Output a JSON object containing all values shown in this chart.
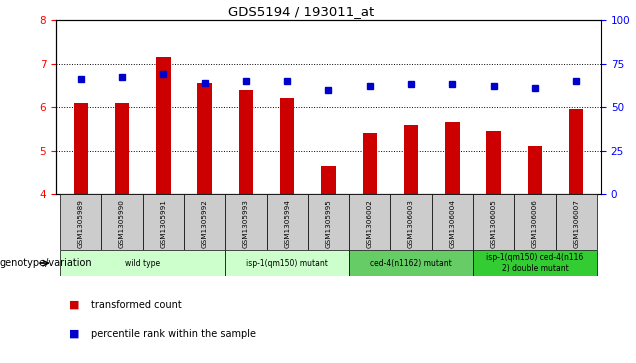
{
  "title": "GDS5194 / 193011_at",
  "samples": [
    "GSM1305989",
    "GSM1305990",
    "GSM1305991",
    "GSM1305992",
    "GSM1305993",
    "GSM1305994",
    "GSM1305995",
    "GSM1306002",
    "GSM1306003",
    "GSM1306004",
    "GSM1306005",
    "GSM1306006",
    "GSM1306007"
  ],
  "transformed_count": [
    6.1,
    6.1,
    7.15,
    6.55,
    6.4,
    6.2,
    4.65,
    5.4,
    5.6,
    5.65,
    5.45,
    5.1,
    5.95
  ],
  "percentile_rank": [
    66,
    67,
    69,
    64,
    65,
    65,
    60,
    62,
    63,
    63,
    62,
    61,
    65
  ],
  "ylim": [
    4,
    8
  ],
  "yticks": [
    4,
    5,
    6,
    7,
    8
  ],
  "right_yticks": [
    0,
    25,
    50,
    75,
    100
  ],
  "right_ylim": [
    0,
    100
  ],
  "bar_color": "#cc0000",
  "dot_color": "#0000cc",
  "tick_bg_color": "#cccccc",
  "bar_width": 0.35,
  "dot_size": 5,
  "group_spans": [
    {
      "start": 0,
      "end": 3,
      "label": "wild type",
      "color": "#ccffcc"
    },
    {
      "start": 4,
      "end": 6,
      "label": "isp-1(qm150) mutant",
      "color": "#ccffcc"
    },
    {
      "start": 7,
      "end": 9,
      "label": "ced-4(n1162) mutant",
      "color": "#66cc66"
    },
    {
      "start": 10,
      "end": 12,
      "label": "isp-1(qm150) ced-4(n116\n2) double mutant",
      "color": "#33cc33"
    }
  ],
  "bottom_label": "genotype/variation",
  "legend": [
    {
      "label": "transformed count",
      "color": "#cc0000"
    },
    {
      "label": "percentile rank within the sample",
      "color": "#0000cc"
    }
  ]
}
